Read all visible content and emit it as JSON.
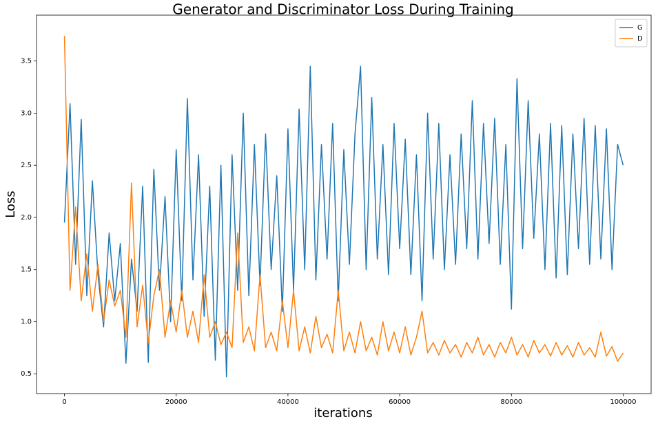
{
  "chart_data": {
    "type": "line",
    "title": "Generator and Discriminator Loss During Training",
    "x_label": "iterations",
    "y_label": "Loss",
    "x": [
      0,
      1000,
      2000,
      3000,
      4000,
      5000,
      6000,
      7000,
      8000,
      9000,
      10000,
      11000,
      12000,
      13000,
      14000,
      15000,
      16000,
      17000,
      18000,
      19000,
      20000,
      21000,
      22000,
      23000,
      24000,
      25000,
      26000,
      27000,
      28000,
      29000,
      30000,
      31000,
      32000,
      33000,
      34000,
      35000,
      36000,
      37000,
      38000,
      39000,
      40000,
      41000,
      42000,
      43000,
      44000,
      45000,
      46000,
      47000,
      48000,
      49000,
      50000,
      51000,
      52000,
      53000,
      54000,
      55000,
      56000,
      57000,
      58000,
      59000,
      60000,
      61000,
      62000,
      63000,
      64000,
      65000,
      66000,
      67000,
      68000,
      69000,
      70000,
      71000,
      72000,
      73000,
      74000,
      75000,
      76000,
      77000,
      78000,
      79000,
      80000,
      81000,
      82000,
      83000,
      84000,
      85000,
      86000,
      87000,
      88000,
      89000,
      90000,
      91000,
      92000,
      93000,
      94000,
      95000,
      96000,
      97000,
      98000,
      99000,
      100000
    ],
    "series": [
      {
        "name": "G",
        "color": "#1f77b4",
        "values": [
          1.95,
          3.09,
          1.55,
          2.94,
          1.25,
          2.35,
          1.45,
          0.95,
          1.85,
          1.2,
          1.75,
          0.6,
          1.6,
          1.1,
          2.3,
          0.61,
          2.46,
          1.3,
          2.2,
          1.0,
          2.65,
          1.2,
          3.14,
          1.4,
          2.6,
          1.05,
          2.3,
          0.63,
          2.5,
          0.47,
          2.6,
          1.3,
          3.0,
          1.25,
          2.7,
          1.35,
          2.8,
          1.5,
          2.4,
          1.1,
          2.85,
          1.3,
          3.04,
          1.5,
          3.45,
          1.4,
          2.7,
          1.6,
          2.9,
          1.2,
          2.65,
          1.55,
          2.8,
          3.45,
          1.5,
          3.15,
          1.6,
          2.7,
          1.45,
          2.9,
          1.7,
          2.75,
          1.45,
          2.6,
          1.2,
          3.0,
          1.6,
          2.9,
          1.5,
          2.6,
          1.55,
          2.8,
          1.7,
          3.12,
          1.6,
          2.9,
          1.75,
          2.95,
          1.55,
          2.7,
          1.12,
          3.33,
          1.7,
          3.12,
          1.8,
          2.8,
          1.5,
          2.9,
          1.42,
          2.88,
          1.45,
          2.8,
          1.7,
          2.95,
          1.55,
          2.88,
          1.6,
          2.85,
          1.5,
          2.7,
          2.5
        ]
      },
      {
        "name": "D",
        "color": "#ff7f0e",
        "values": [
          3.74,
          1.3,
          2.1,
          1.2,
          1.65,
          1.1,
          1.55,
          1.0,
          1.4,
          1.15,
          1.3,
          0.85,
          2.33,
          0.95,
          1.35,
          0.8,
          1.25,
          1.5,
          0.85,
          1.2,
          0.9,
          1.3,
          0.85,
          1.1,
          0.8,
          1.45,
          0.85,
          1.0,
          0.78,
          0.9,
          0.75,
          1.85,
          0.8,
          0.95,
          0.72,
          1.45,
          0.75,
          0.9,
          0.72,
          1.2,
          0.75,
          1.3,
          0.72,
          0.95,
          0.7,
          1.05,
          0.75,
          0.88,
          0.7,
          1.3,
          0.72,
          0.9,
          0.7,
          1.0,
          0.72,
          0.85,
          0.68,
          1.0,
          0.72,
          0.9,
          0.7,
          0.95,
          0.68,
          0.85,
          1.1,
          0.7,
          0.8,
          0.68,
          0.82,
          0.7,
          0.78,
          0.66,
          0.8,
          0.7,
          0.85,
          0.68,
          0.78,
          0.66,
          0.8,
          0.7,
          0.85,
          0.68,
          0.78,
          0.66,
          0.82,
          0.7,
          0.78,
          0.67,
          0.8,
          0.68,
          0.77,
          0.66,
          0.8,
          0.68,
          0.75,
          0.66,
          0.9,
          0.67,
          0.76,
          0.62,
          0.7
        ]
      }
    ],
    "xlim": [
      -5000,
      105000
    ],
    "ylim": [
      0.31,
      3.94
    ],
    "xticks": [
      0,
      20000,
      40000,
      60000,
      80000,
      100000
    ],
    "yticks": [
      0.5,
      {
        "value": 1,
        "label": "1.0"
      },
      1.5,
      {
        "value": 2,
        "label": "2.0"
      },
      2.5,
      {
        "value": 3,
        "label": "3.0"
      },
      3.5
    ],
    "grid": false,
    "legend": "upper right"
  }
}
